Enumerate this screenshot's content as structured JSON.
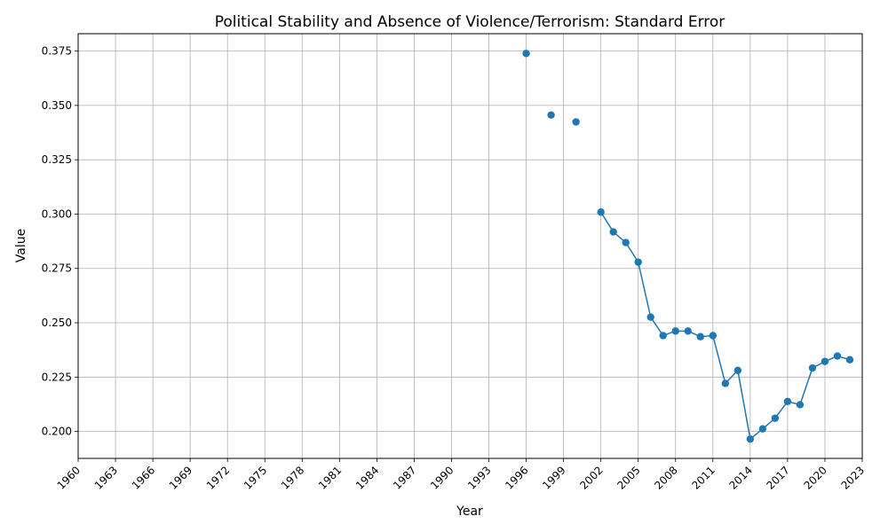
{
  "chart_data": {
    "type": "line",
    "title": "Political Stability and Absence of Violence/Terrorism: Standard Error",
    "xlabel": "Year",
    "ylabel": "Value",
    "xlim": [
      1960,
      2023
    ],
    "ylim": [
      0.1876,
      0.383
    ],
    "x_ticks": [
      1960,
      1963,
      1966,
      1969,
      1972,
      1975,
      1978,
      1981,
      1984,
      1987,
      1990,
      1993,
      1996,
      1999,
      2002,
      2005,
      2008,
      2011,
      2014,
      2017,
      2020,
      2023
    ],
    "y_ticks": [
      0.2,
      0.225,
      0.25,
      0.275,
      0.3,
      0.325,
      0.35,
      0.375
    ],
    "y_tick_labels": [
      "0.200",
      "0.225",
      "0.250",
      "0.275",
      "0.300",
      "0.325",
      "0.350",
      "0.375"
    ],
    "grid": true,
    "color": "#1f77b4",
    "series": [
      {
        "x": [
          1996,
          1998,
          2000,
          2002,
          2003,
          2004,
          2005,
          2006,
          2007,
          2008,
          2009,
          2010,
          2011,
          2012,
          2013,
          2014,
          2015,
          2016,
          2017,
          2018,
          2019,
          2020,
          2021,
          2022
        ],
        "values": [
          0.3739,
          0.3456,
          0.3424,
          0.3009,
          0.2918,
          0.2869,
          0.2779,
          0.2526,
          0.2441,
          0.2462,
          0.2462,
          0.2436,
          0.2441,
          0.2221,
          0.2281,
          0.1965,
          0.2012,
          0.2061,
          0.2138,
          0.2123,
          0.2292,
          0.2322,
          0.2347,
          0.233
        ]
      }
    ]
  }
}
